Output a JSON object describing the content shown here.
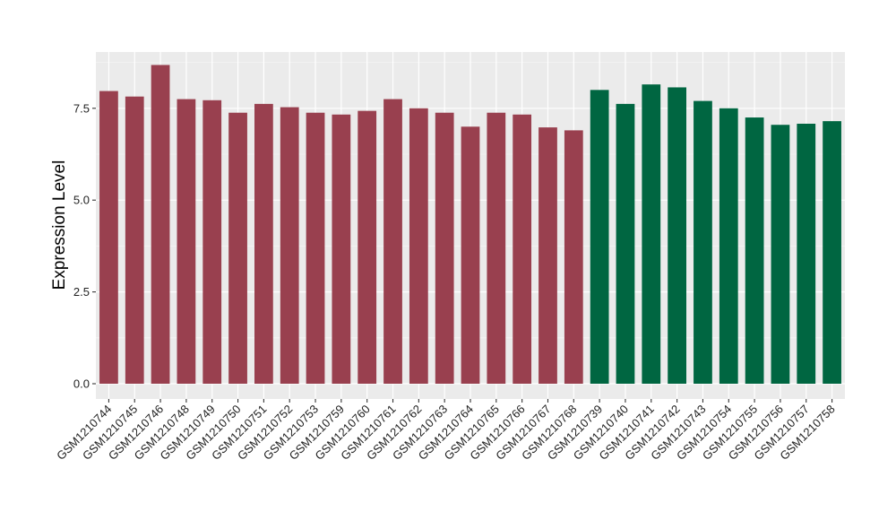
{
  "chart_data": {
    "type": "bar",
    "title": "",
    "xlabel": "",
    "ylabel": "Expression Level",
    "ylim": [
      0,
      8.9
    ],
    "y_ticks": [
      0.0,
      2.5,
      5.0,
      7.5
    ],
    "y_tick_labels": [
      "0.0",
      "2.5",
      "5.0",
      "7.5"
    ],
    "grid": true,
    "legend": "none",
    "categories": [
      "GSM1210744",
      "GSM1210745",
      "GSM1210746",
      "GSM1210748",
      "GSM1210749",
      "GSM1210750",
      "GSM1210751",
      "GSM1210752",
      "GSM1210753",
      "GSM1210759",
      "GSM1210760",
      "GSM1210761",
      "GSM1210762",
      "GSM1210763",
      "GSM1210764",
      "GSM1210765",
      "GSM1210766",
      "GSM1210767",
      "GSM1210768",
      "GSM1210739",
      "GSM1210740",
      "GSM1210741",
      "GSM1210742",
      "GSM1210743",
      "GSM1210754",
      "GSM1210755",
      "GSM1210756",
      "GSM1210757",
      "GSM1210758"
    ],
    "values": [
      7.97,
      7.82,
      8.68,
      7.75,
      7.72,
      7.38,
      7.62,
      7.53,
      7.38,
      7.33,
      7.43,
      7.75,
      7.5,
      7.38,
      7.0,
      7.38,
      7.33,
      6.98,
      6.9,
      8.0,
      7.62,
      8.15,
      8.07,
      7.7,
      7.5,
      7.25,
      7.05,
      7.08,
      7.15
    ],
    "groups": [
      "a",
      "a",
      "a",
      "a",
      "a",
      "a",
      "a",
      "a",
      "a",
      "a",
      "a",
      "a",
      "a",
      "a",
      "a",
      "a",
      "a",
      "a",
      "a",
      "b",
      "b",
      "b",
      "b",
      "b",
      "b",
      "b",
      "b",
      "b",
      "b"
    ],
    "group_colors": {
      "a": "#99404f",
      "b": "#006641"
    },
    "colors": {
      "panel": "#ebebeb",
      "grid_major": "#ffffff",
      "grid_minor": "#f5f5f5",
      "tick": "#333333"
    }
  }
}
